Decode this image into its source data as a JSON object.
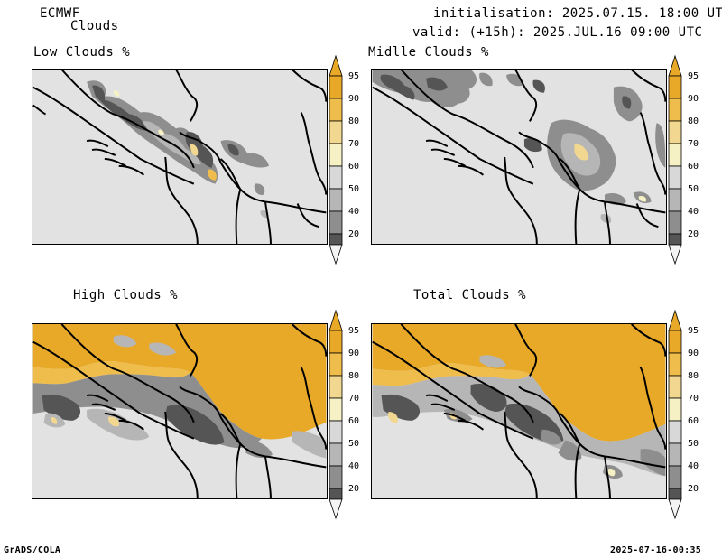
{
  "header": {
    "model": "ECMWF",
    "product": "Clouds",
    "initialisation": "initialisation: 2025.07.15. 18:00 UTC",
    "valid": "valid: (+15h): 2025.JUL.16 09:00 UTC"
  },
  "panels": [
    {
      "id": "low",
      "title": "Low Clouds %"
    },
    {
      "id": "middle",
      "title": "Midlle Clouds %"
    },
    {
      "id": "high",
      "title": "High Clouds %"
    },
    {
      "id": "total",
      "title": "Total Clouds %"
    }
  ],
  "colorbar": {
    "ticks": [
      "95",
      "90",
      "80",
      "70",
      "60",
      "50",
      "40",
      "20"
    ],
    "colors": {
      "95": "#e8a828",
      "90": "#eebd4c",
      "80": "#f1d790",
      "70": "#f5f1c4",
      "60": "#d8d8d8",
      "50": "#b6b6b6",
      "40": "#8e8e8e",
      "20": "#555555",
      "below": "#e2e2e2"
    }
  },
  "footer": {
    "left": "GrADS/COLA",
    "right": "2025-07-16-00:35"
  }
}
